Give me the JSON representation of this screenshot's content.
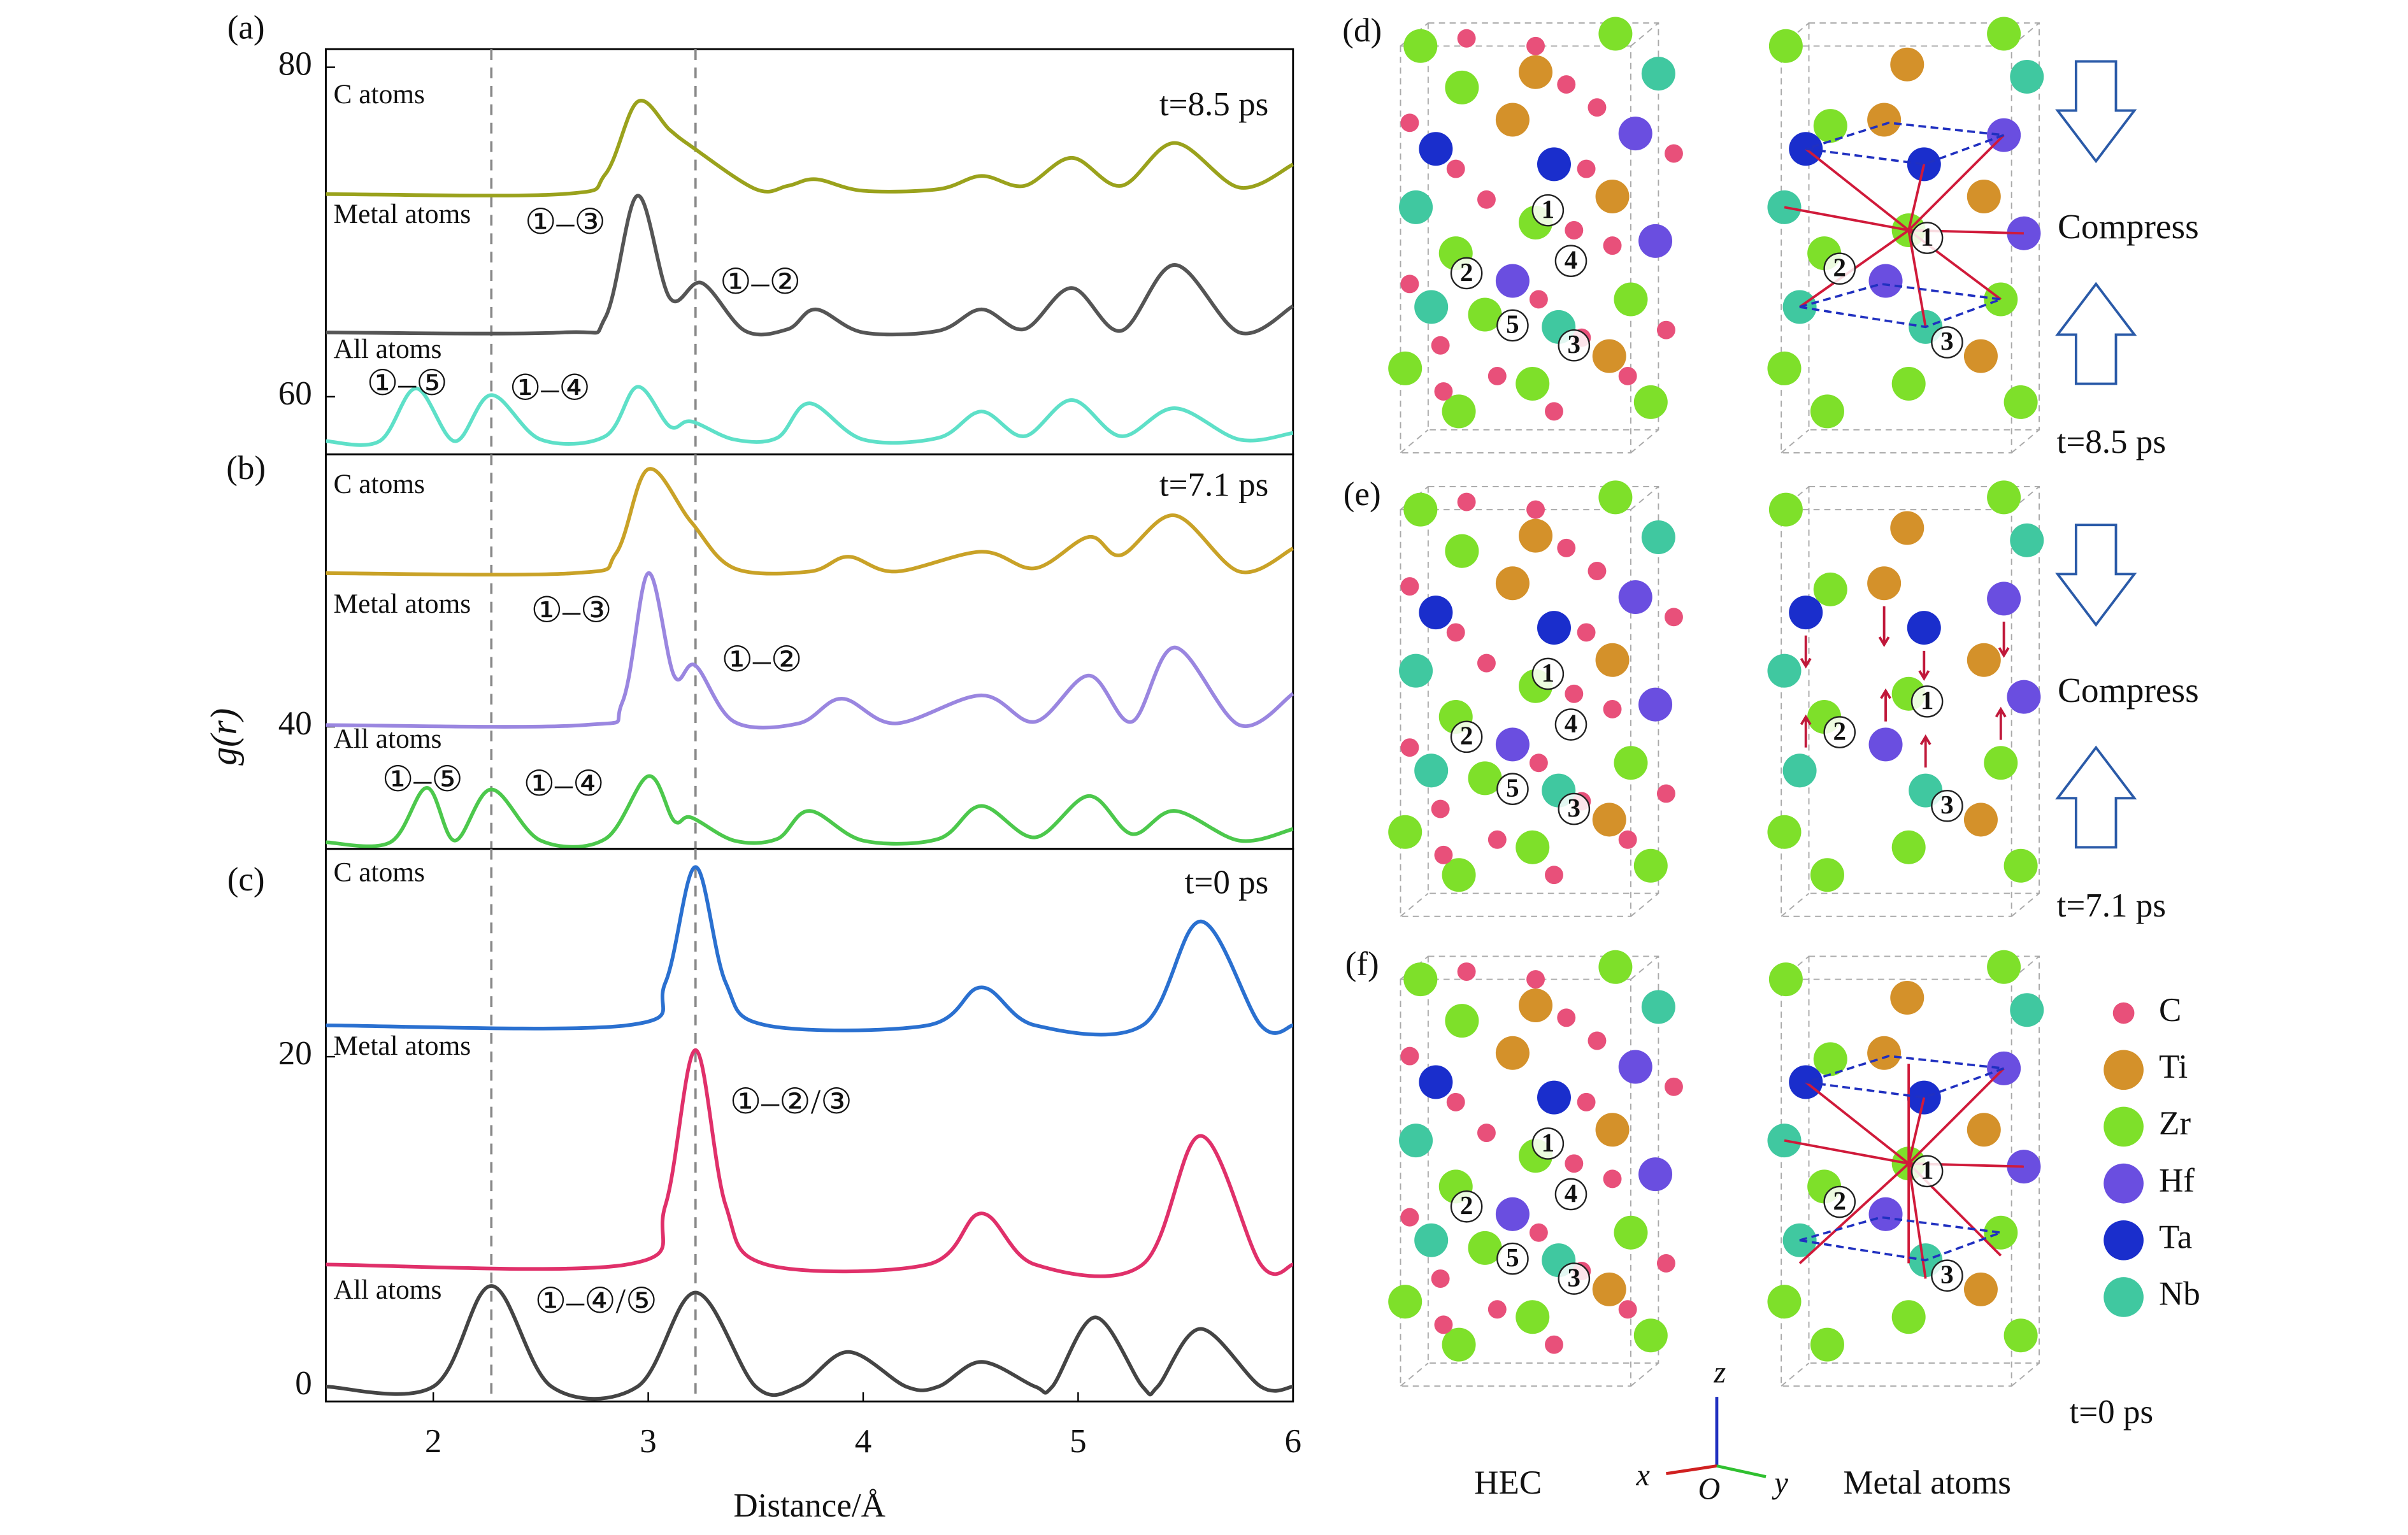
{
  "chart_data": [
    {
      "type": "line",
      "label": "(a)",
      "annotation": "t=8.5 ps",
      "xlim": [
        1.5,
        6
      ],
      "ylim": [
        56.5,
        81.1
      ],
      "yticks": [
        60,
        80
      ],
      "vlines": [
        2.27,
        3.22
      ],
      "annotations": [
        "①–③",
        "①–②",
        "①–⑤",
        "①–④"
      ],
      "series": [
        {
          "name": "C atoms",
          "color": "#9aa21c",
          "x": [
            1.5,
            2.6,
            2.8,
            2.95,
            3.1,
            3.2,
            3.5,
            3.65,
            3.78,
            4.0,
            4.35,
            4.55,
            4.75,
            4.97,
            5.2,
            5.45,
            5.75,
            6.0
          ],
          "values": [
            72.3,
            72.3,
            73.5,
            77.9,
            76.2,
            75.2,
            72.6,
            72.8,
            73.2,
            72.5,
            72.6,
            73.4,
            72.8,
            74.5,
            72.8,
            75.4,
            72.7,
            74.1
          ]
        },
        {
          "name": "Metal atoms",
          "color": "#555555",
          "x": [
            1.5,
            2.6,
            2.8,
            2.95,
            3.1,
            3.25,
            3.45,
            3.65,
            3.78,
            4.0,
            4.35,
            4.55,
            4.75,
            4.97,
            5.2,
            5.45,
            5.75,
            6.0
          ],
          "values": [
            63.9,
            63.9,
            64.8,
            72.2,
            66.0,
            66.9,
            64.0,
            64.1,
            65.3,
            63.9,
            64.0,
            65.3,
            64.1,
            66.6,
            64.0,
            68.0,
            63.9,
            65.5
          ]
        },
        {
          "name": "All atoms",
          "color": "#5ee0c8",
          "x": [
            1.5,
            1.75,
            1.92,
            2.1,
            2.27,
            2.5,
            2.8,
            2.95,
            3.1,
            3.2,
            3.4,
            3.6,
            3.75,
            4.0,
            4.35,
            4.55,
            4.75,
            4.97,
            5.2,
            5.45,
            5.75,
            6.0
          ],
          "values": [
            57.3,
            57.3,
            60.5,
            57.3,
            60.1,
            57.4,
            57.6,
            60.6,
            58.2,
            58.5,
            57.4,
            57.5,
            59.6,
            57.4,
            57.5,
            59.1,
            57.6,
            59.8,
            57.6,
            59.3,
            57.4,
            57.8
          ]
        }
      ]
    },
    {
      "type": "line",
      "label": "(b)",
      "annotation": "t=7.1 ps",
      "xlim": [
        1.5,
        6
      ],
      "ylim": [
        32.6,
        56.5
      ],
      "yticks": [
        40
      ],
      "vlines": [
        2.27,
        3.22
      ],
      "ylabel": "g(r)",
      "annotations": [
        "①–③",
        "①–②",
        "①–⑤",
        "①–④"
      ],
      "series": [
        {
          "name": "C atoms",
          "color": "#c9a227",
          "x": [
            1.5,
            2.65,
            2.85,
            3.0,
            3.2,
            3.4,
            3.75,
            3.93,
            4.15,
            4.55,
            4.8,
            5.05,
            5.2,
            5.45,
            5.75,
            6.0
          ],
          "values": [
            49.3,
            49.3,
            50.5,
            55.6,
            52.4,
            49.6,
            49.4,
            50.3,
            49.4,
            50.6,
            49.6,
            51.5,
            50.4,
            52.8,
            49.4,
            50.8
          ]
        },
        {
          "name": "Metal atoms",
          "color": "#9a86e0",
          "x": [
            1.5,
            2.7,
            2.88,
            3.0,
            3.12,
            3.22,
            3.4,
            3.7,
            3.9,
            4.15,
            4.55,
            4.8,
            5.05,
            5.25,
            5.45,
            5.75,
            6.0
          ],
          "values": [
            40.1,
            40.1,
            41.5,
            49.3,
            43.1,
            43.7,
            40.3,
            40.2,
            41.7,
            40.2,
            41.9,
            40.3,
            43.1,
            40.3,
            44.8,
            40.1,
            42.0
          ]
        },
        {
          "name": "All atoms",
          "color": "#4cc84c",
          "x": [
            1.5,
            1.8,
            1.97,
            2.1,
            2.27,
            2.5,
            2.8,
            3.0,
            3.12,
            3.2,
            3.4,
            3.6,
            3.75,
            4.0,
            4.35,
            4.55,
            4.8,
            5.05,
            5.25,
            5.45,
            5.75,
            6.0
          ],
          "values": [
            33.0,
            33.0,
            36.3,
            33.1,
            36.2,
            33.1,
            33.2,
            37.0,
            34.3,
            34.5,
            33.1,
            33.2,
            34.9,
            33.1,
            33.2,
            35.2,
            33.3,
            35.8,
            33.5,
            34.9,
            33.1,
            33.8
          ]
        }
      ]
    },
    {
      "type": "line",
      "label": "(c)",
      "annotation": "t=0 ps",
      "xlim": [
        1.5,
        6
      ],
      "ylim": [
        -0.9,
        32.6
      ],
      "yticks": [
        0,
        20
      ],
      "xticks": [
        2,
        3,
        4,
        5,
        6
      ],
      "vlines": [
        2.27,
        3.22
      ],
      "xlabel": "Distance/Å",
      "annotations": [
        "①–②/③",
        "①–④/⑤"
      ],
      "series": [
        {
          "name": "C atoms",
          "color": "#2a70d0",
          "x": [
            1.5,
            2.9,
            3.08,
            3.22,
            3.36,
            3.55,
            4.3,
            4.55,
            4.8,
            5.3,
            5.57,
            5.85,
            6.0
          ],
          "values": [
            21.9,
            21.9,
            24.5,
            31.5,
            24.5,
            21.9,
            21.9,
            24.2,
            21.9,
            21.9,
            28.2,
            21.9,
            21.9
          ]
        },
        {
          "name": "Metal atoms",
          "color": "#e0306a",
          "x": [
            1.5,
            2.9,
            3.08,
            3.22,
            3.36,
            3.55,
            4.3,
            4.55,
            4.8,
            5.3,
            5.57,
            5.85,
            6.0
          ],
          "values": [
            7.4,
            7.4,
            11.0,
            20.4,
            11.0,
            7.4,
            7.4,
            10.5,
            7.4,
            7.4,
            15.2,
            7.4,
            7.4
          ]
        },
        {
          "name": "All atoms",
          "color": "#444444",
          "x": [
            1.5,
            2.0,
            2.27,
            2.55,
            2.95,
            3.22,
            3.5,
            3.7,
            3.93,
            4.2,
            4.35,
            4.55,
            4.8,
            4.88,
            5.08,
            5.3,
            5.37,
            5.57,
            5.85,
            6.0
          ],
          "values": [
            0,
            0,
            6.1,
            0,
            0,
            5.7,
            0,
            0,
            2.1,
            0,
            0,
            1.5,
            0,
            0,
            4.2,
            0,
            0,
            3.5,
            0,
            0
          ]
        }
      ]
    }
  ],
  "structure_figure": {
    "panels": [
      {
        "label": "(d)",
        "time": "t=8.5 ps",
        "compress": "Compress",
        "hec_labels": [
          "1",
          "2",
          "4",
          "5",
          "3"
        ],
        "metal_labels": [
          "1",
          "2",
          "3"
        ]
      },
      {
        "label": "(e)",
        "time": "t=7.1 ps",
        "compress": "Compress",
        "hec_labels": [
          "1",
          "2",
          "4",
          "5",
          "3"
        ],
        "metal_labels": [
          "1",
          "2",
          "3"
        ]
      },
      {
        "label": "(f)",
        "time": "t=0 ps",
        "hec_labels": [
          "1",
          "2",
          "4",
          "5",
          "3"
        ],
        "metal_labels": [
          "1",
          "2",
          "3"
        ]
      }
    ],
    "legend": [
      {
        "name": "C",
        "color": "#e8507a"
      },
      {
        "name": "Ti",
        "color": "#d4912a"
      },
      {
        "name": "Zr",
        "color": "#7ee02a"
      },
      {
        "name": "Hf",
        "color": "#6a4ee0"
      },
      {
        "name": "Ta",
        "color": "#1a2ecc"
      },
      {
        "name": "Nb",
        "color": "#40c8a0"
      }
    ],
    "hec_caption": "HEC",
    "metal_caption": "Metal atoms",
    "axes": {
      "z": "z",
      "x": "x",
      "origin": "O",
      "y": "y"
    }
  }
}
